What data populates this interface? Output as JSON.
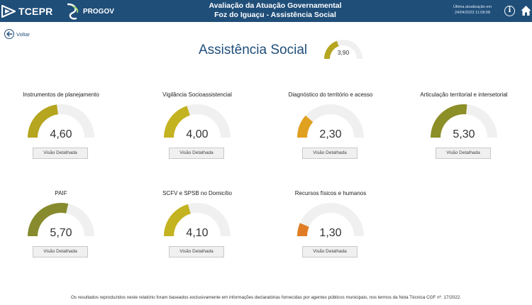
{
  "header": {
    "logo_text": "TCEPR",
    "progov_text": "PROGOV",
    "title_line1": "Avaliação da Atuação Governamental",
    "title_line2": "Foz do Iguaçu - Assistência Social",
    "update_label": "Última atualização em",
    "update_date": "24/04/2023 11:08:08"
  },
  "back": {
    "label": "Voltar"
  },
  "page": {
    "title": "Assistência Social",
    "score": "3,90",
    "score_value": 3.9,
    "score_color": "#b5a51f"
  },
  "gauge_max": 10,
  "track_color": "#f0f0f0",
  "cards": [
    {
      "title": "Instrumentos de planejamento",
      "value_text": "4,60",
      "value": 4.6,
      "color": "#b5a51f",
      "button": "Visão Detalhada"
    },
    {
      "title": "Vigilância Socioassistencial",
      "value_text": "4,00",
      "value": 4.0,
      "color": "#c4b320",
      "button": "Visão Detalhada"
    },
    {
      "title": "Diagnóstico do território e acesso",
      "value_text": "2,30",
      "value": 2.3,
      "color": "#e0a020",
      "button": "Visão Detalhada"
    },
    {
      "title": "Articulação territorial e intersetorial",
      "value_text": "5,30",
      "value": 5.3,
      "color": "#8c8e28",
      "button": "Visão Detalhada"
    },
    {
      "title": "PAIF",
      "value_text": "5,70",
      "value": 5.7,
      "color": "#878b2e",
      "button": "Visão Detalhada"
    },
    {
      "title": "SCFV e SPSB no Domicílio",
      "value_text": "4,10",
      "value": 4.1,
      "color": "#c4b320",
      "button": "Visão Detalhada"
    },
    {
      "title": "Recursos físicos e humanos",
      "value_text": "1,30",
      "value": 1.3,
      "color": "#e07d24",
      "button": "Visão Detalhada"
    }
  ],
  "footnote": "Os resultados reproduzidos neste relatório foram baseados exclusivamente em informações declaratórias fornecidas por agentes públicos municipais, nos termos da Nota Técnica CGF nº. 17/2022."
}
